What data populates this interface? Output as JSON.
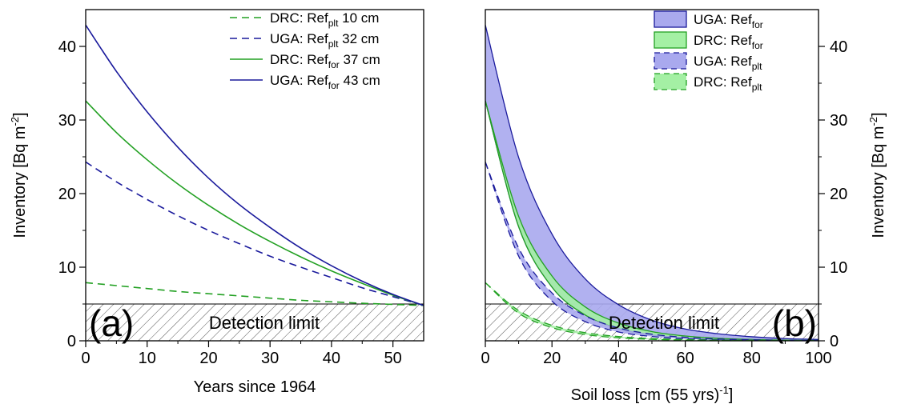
{
  "chart_data": [
    {
      "panel_label": "(a)",
      "type": "line",
      "xlabel": "Years since 1964",
      "ylabel": "Inventory [Bq m",
      "ylabel_sup": "-2",
      "ylabel_end": "]",
      "xlim": [
        0,
        55
      ],
      "ylim": [
        0,
        45
      ],
      "xticks": [
        0,
        10,
        20,
        30,
        40,
        50
      ],
      "yticks": [
        0,
        10,
        20,
        30,
        40
      ],
      "detection_limit": {
        "label": "Detection limit",
        "value": 5
      },
      "legend": {
        "placement": "top-right"
      },
      "series": [
        {
          "name": "DRC: Ref",
          "sub": "plt",
          "suffix": "10 cm",
          "color": "#22a022",
          "style": "dashed",
          "x": [
            0,
            5,
            10,
            15,
            20,
            25,
            30,
            35,
            40,
            45,
            50,
            55
          ],
          "y": [
            7.9,
            7.5,
            7.1,
            6.7,
            6.4,
            6.1,
            5.8,
            5.5,
            5.3,
            5.1,
            4.95,
            4.8
          ]
        },
        {
          "name": "UGA: Ref",
          "sub": "plt",
          "suffix": "32 cm",
          "color": "#1a1a9c",
          "style": "dashed",
          "x": [
            0,
            5,
            10,
            15,
            20,
            25,
            30,
            35,
            40,
            45,
            50,
            55
          ],
          "y": [
            24.3,
            21.6,
            19.2,
            17.0,
            15.0,
            13.2,
            11.5,
            10.0,
            8.6,
            7.2,
            6.0,
            4.8
          ]
        },
        {
          "name": "DRC: Ref",
          "sub": "for",
          "suffix": "37 cm",
          "color": "#22a022",
          "style": "solid",
          "x": [
            0,
            5,
            10,
            15,
            20,
            25,
            30,
            35,
            40,
            45,
            50,
            55
          ],
          "y": [
            32.6,
            28.3,
            24.6,
            21.3,
            18.4,
            15.8,
            13.5,
            11.4,
            9.5,
            7.8,
            6.2,
            4.8
          ]
        },
        {
          "name": "UGA: Ref",
          "sub": "for",
          "suffix": "43 cm",
          "color": "#1a1a9c",
          "style": "solid",
          "x": [
            0,
            5,
            10,
            15,
            20,
            25,
            30,
            35,
            40,
            45,
            50,
            55
          ],
          "y": [
            42.9,
            36.6,
            31.1,
            26.3,
            22.1,
            18.5,
            15.4,
            12.6,
            10.2,
            8.1,
            6.3,
            4.8
          ]
        }
      ]
    },
    {
      "panel_label": "(b)",
      "type": "area",
      "xlabel": "Soil loss [cm (55 yrs)",
      "xlabel_sup": "-1",
      "xlabel_end": "]",
      "ylabel": "Inventory [Bq m",
      "ylabel_sup": "-2",
      "ylabel_end": "]",
      "xlim": [
        0,
        100
      ],
      "ylim": [
        0,
        45
      ],
      "xticks": [
        0,
        20,
        40,
        60,
        80,
        100
      ],
      "yticks": [
        0,
        10,
        20,
        30,
        40
      ],
      "detection_limit": {
        "label": "Detection limit",
        "value": 5
      },
      "legend": {
        "placement": "top-right"
      },
      "series": [
        {
          "name": "UGA: Ref",
          "sub": "for",
          "color": "#1a1a9c",
          "fill": "#a9a9ee",
          "style": "solid",
          "x": [
            0,
            10,
            20,
            30,
            40,
            50,
            60,
            70,
            80,
            90,
            100
          ],
          "upper": [
            42.9,
            24.9,
            14.5,
            8.4,
            4.9,
            2.8,
            1.6,
            0.95,
            0.55,
            0.3,
            0.18
          ],
          "lower": [
            32.6,
            15.5,
            7.3,
            3.5,
            1.65,
            0.78,
            0.37,
            0.18,
            0.08,
            0.04,
            0.02
          ]
        },
        {
          "name": "DRC: Ref",
          "sub": "for",
          "color": "#22a022",
          "fill": "#a4f0a4",
          "style": "solid",
          "x": [
            0,
            10,
            20,
            30,
            40,
            50,
            60,
            70,
            80,
            90,
            100
          ],
          "upper": [
            32.6,
            16.9,
            8.8,
            4.6,
            2.4,
            1.25,
            0.65,
            0.34,
            0.18,
            0.09,
            0.05
          ],
          "lower": [
            32.6,
            15.5,
            7.3,
            3.5,
            1.65,
            0.78,
            0.37,
            0.18,
            0.08,
            0.04,
            0.02
          ]
        },
        {
          "name": "UGA: Ref",
          "sub": "plt",
          "color": "#1a1a9c",
          "fill": "#a9a9ee",
          "style": "dashed",
          "x": [
            0,
            10,
            20,
            30,
            40,
            50,
            60,
            70,
            80,
            90,
            100
          ],
          "upper": [
            24.3,
            12.6,
            6.5,
            3.4,
            1.75,
            0.9,
            0.47,
            0.24,
            0.13,
            0.07,
            0.03
          ],
          "lower": [
            24.3,
            11.5,
            5.4,
            2.6,
            1.2,
            0.58,
            0.27,
            0.13,
            0.06,
            0.03,
            0.01
          ]
        },
        {
          "name": "DRC: Ref",
          "sub": "plt",
          "color": "#22a022",
          "fill": "#a4f0a4",
          "style": "dashed",
          "x": [
            0,
            10,
            20,
            30,
            40,
            50,
            60,
            70,
            80,
            90,
            100
          ],
          "upper": [
            7.9,
            4.1,
            2.1,
            1.1,
            0.58,
            0.3,
            0.16,
            0.08,
            0.04,
            0.02,
            0.01
          ],
          "lower": [
            7.9,
            3.75,
            1.8,
            0.85,
            0.4,
            0.19,
            0.09,
            0.04,
            0.02,
            0.01,
            0.0
          ]
        }
      ]
    }
  ]
}
